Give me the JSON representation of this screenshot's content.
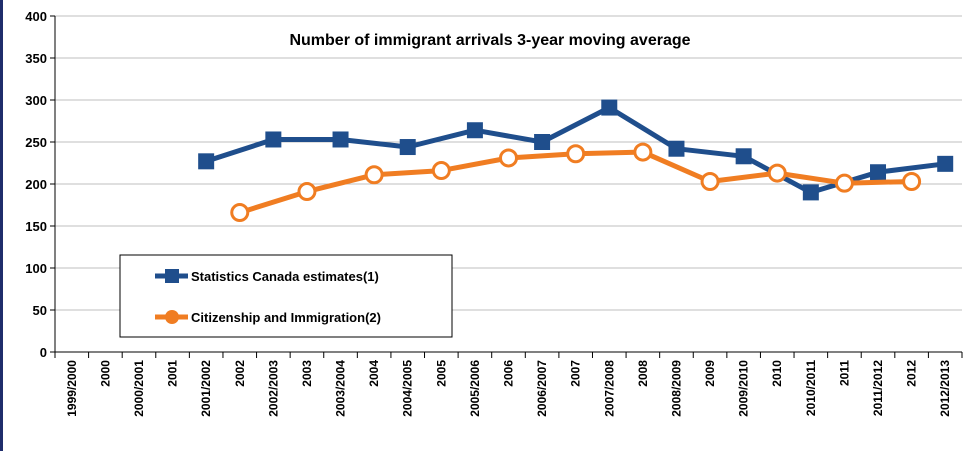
{
  "chart_data": {
    "type": "line",
    "title": "Number of immigrant arrivals 3-year moving average",
    "xlabel": "",
    "ylabel": "",
    "ylim": [
      0,
      400
    ],
    "yticks": [
      "0",
      "50",
      "100",
      "150",
      "200",
      "250",
      "300",
      "350",
      "400"
    ],
    "grid": true,
    "legend_position": "bottom-left",
    "categories": [
      "1999/2000",
      "2000",
      "2000/2001",
      "2001",
      "2001/2002",
      "2002",
      "2002/2003",
      "2003",
      "2003/2004",
      "2004",
      "2004/2005",
      "2005",
      "2005/2006",
      "2006",
      "2006/2007",
      "2007",
      "2007/2008",
      "2008",
      "2008/2009",
      "2009",
      "2009/2010",
      "2010",
      "2010/2011",
      "2011",
      "2011/2012",
      "2012",
      "2012/2013"
    ],
    "series": [
      {
        "name": "Statistics Canada estimates(1)",
        "color": "#1f4e8c",
        "marker": "square",
        "values": [
          null,
          null,
          null,
          null,
          227,
          null,
          253,
          null,
          253,
          null,
          244,
          null,
          264,
          null,
          250,
          null,
          291,
          null,
          242,
          null,
          233,
          null,
          190,
          null,
          214,
          null,
          224
        ]
      },
      {
        "name": "Citizenship and Immigration(2)",
        "color": "#f07d22",
        "marker": "circle-open",
        "values": [
          null,
          null,
          null,
          null,
          null,
          166,
          null,
          191,
          null,
          211,
          null,
          216,
          null,
          231,
          null,
          236,
          null,
          238,
          null,
          203,
          null,
          213,
          null,
          201,
          null,
          203,
          null
        ]
      }
    ]
  }
}
